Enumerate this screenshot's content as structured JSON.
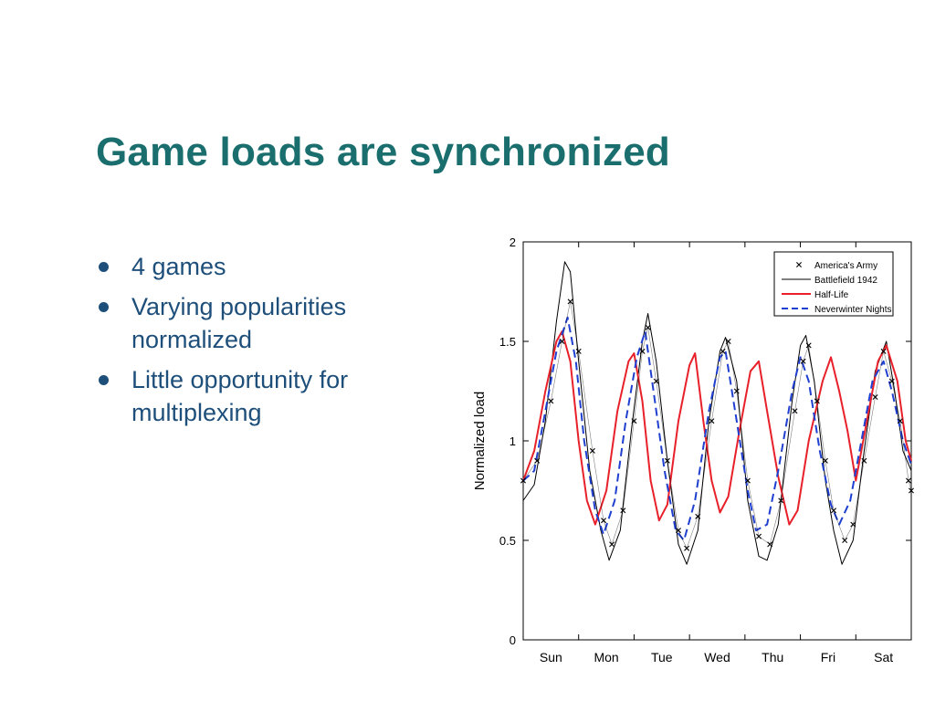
{
  "slide": {
    "title": "Game loads are synchronized",
    "bullets": [
      {
        "text": "4 games"
      },
      {
        "text": "Varying popularities normalized"
      },
      {
        "text": "Little opportunity for multiplexing"
      }
    ],
    "text_color": "#1e4f7a",
    "title_color": "#1a6e6e"
  },
  "chart_data": {
    "type": "line",
    "title": "",
    "xlabel": "",
    "ylabel": "Normalized load",
    "ylim": [
      0,
      2
    ],
    "xlim": [
      0,
      7
    ],
    "yticks": [
      "0",
      "0.5",
      "1",
      "1.5",
      "2"
    ],
    "categories": [
      "Sun",
      "Mon",
      "Tue",
      "Wed",
      "Thu",
      "Fri",
      "Sat"
    ],
    "grid": false,
    "legend_position": "top-right",
    "series": [
      {
        "name": "America's Army",
        "style": "markers-x",
        "color": "#000000",
        "points": [
          [
            0.0,
            0.8
          ],
          [
            0.25,
            0.9
          ],
          [
            0.5,
            1.2
          ],
          [
            0.7,
            1.5
          ],
          [
            0.85,
            1.7
          ],
          [
            1.0,
            1.45
          ],
          [
            1.25,
            0.95
          ],
          [
            1.45,
            0.6
          ],
          [
            1.6,
            0.48
          ],
          [
            1.8,
            0.65
          ],
          [
            2.0,
            1.1
          ],
          [
            2.15,
            1.45
          ],
          [
            2.25,
            1.57
          ],
          [
            2.4,
            1.3
          ],
          [
            2.6,
            0.9
          ],
          [
            2.8,
            0.55
          ],
          [
            2.95,
            0.46
          ],
          [
            3.15,
            0.62
          ],
          [
            3.4,
            1.1
          ],
          [
            3.6,
            1.45
          ],
          [
            3.7,
            1.5
          ],
          [
            3.85,
            1.25
          ],
          [
            4.05,
            0.8
          ],
          [
            4.25,
            0.52
          ],
          [
            4.45,
            0.48
          ],
          [
            4.65,
            0.7
          ],
          [
            4.9,
            1.15
          ],
          [
            5.05,
            1.4
          ],
          [
            5.15,
            1.48
          ],
          [
            5.3,
            1.2
          ],
          [
            5.45,
            0.9
          ],
          [
            5.6,
            0.65
          ],
          [
            5.8,
            0.5
          ],
          [
            5.95,
            0.58
          ],
          [
            6.15,
            0.9
          ],
          [
            6.35,
            1.22
          ],
          [
            6.5,
            1.45
          ],
          [
            6.65,
            1.3
          ],
          [
            6.8,
            1.1
          ],
          [
            6.95,
            0.8
          ],
          [
            7.0,
            0.75
          ]
        ]
      },
      {
        "name": "Battlefield 1942",
        "style": "solid-thin",
        "color": "#000000",
        "points": [
          [
            0.0,
            0.7
          ],
          [
            0.2,
            0.78
          ],
          [
            0.4,
            1.1
          ],
          [
            0.6,
            1.6
          ],
          [
            0.75,
            1.9
          ],
          [
            0.85,
            1.85
          ],
          [
            1.0,
            1.4
          ],
          [
            1.2,
            0.85
          ],
          [
            1.4,
            0.55
          ],
          [
            1.55,
            0.4
          ],
          [
            1.75,
            0.55
          ],
          [
            1.95,
            1.05
          ],
          [
            2.15,
            1.5
          ],
          [
            2.25,
            1.64
          ],
          [
            2.4,
            1.4
          ],
          [
            2.6,
            0.9
          ],
          [
            2.8,
            0.48
          ],
          [
            2.95,
            0.38
          ],
          [
            3.15,
            0.55
          ],
          [
            3.35,
            1.1
          ],
          [
            3.55,
            1.45
          ],
          [
            3.65,
            1.52
          ],
          [
            3.85,
            1.3
          ],
          [
            4.05,
            0.7
          ],
          [
            4.25,
            0.42
          ],
          [
            4.4,
            0.4
          ],
          [
            4.6,
            0.58
          ],
          [
            4.85,
            1.2
          ],
          [
            5.0,
            1.48
          ],
          [
            5.1,
            1.53
          ],
          [
            5.25,
            1.3
          ],
          [
            5.45,
            0.8
          ],
          [
            5.6,
            0.55
          ],
          [
            5.75,
            0.38
          ],
          [
            5.95,
            0.5
          ],
          [
            6.15,
            0.95
          ],
          [
            6.35,
            1.35
          ],
          [
            6.55,
            1.5
          ],
          [
            6.7,
            1.25
          ],
          [
            6.85,
            0.95
          ],
          [
            7.0,
            0.85
          ]
        ]
      },
      {
        "name": "Half-Life",
        "style": "solid-thick",
        "color": "#e8202a",
        "points": [
          [
            0.0,
            0.8
          ],
          [
            0.2,
            0.95
          ],
          [
            0.4,
            1.25
          ],
          [
            0.6,
            1.5
          ],
          [
            0.7,
            1.55
          ],
          [
            0.85,
            1.4
          ],
          [
            1.0,
            1.0
          ],
          [
            1.15,
            0.7
          ],
          [
            1.3,
            0.58
          ],
          [
            1.5,
            0.75
          ],
          [
            1.7,
            1.15
          ],
          [
            1.9,
            1.4
          ],
          [
            2.0,
            1.44
          ],
          [
            2.15,
            1.2
          ],
          [
            2.3,
            0.8
          ],
          [
            2.45,
            0.6
          ],
          [
            2.6,
            0.68
          ],
          [
            2.8,
            1.1
          ],
          [
            3.0,
            1.38
          ],
          [
            3.1,
            1.44
          ],
          [
            3.25,
            1.1
          ],
          [
            3.4,
            0.8
          ],
          [
            3.55,
            0.64
          ],
          [
            3.7,
            0.72
          ],
          [
            3.9,
            1.05
          ],
          [
            4.1,
            1.35
          ],
          [
            4.25,
            1.4
          ],
          [
            4.4,
            1.15
          ],
          [
            4.6,
            0.82
          ],
          [
            4.8,
            0.58
          ],
          [
            4.95,
            0.65
          ],
          [
            5.15,
            1.0
          ],
          [
            5.4,
            1.3
          ],
          [
            5.55,
            1.42
          ],
          [
            5.7,
            1.25
          ],
          [
            5.85,
            1.05
          ],
          [
            6.0,
            0.8
          ],
          [
            6.2,
            1.1
          ],
          [
            6.4,
            1.4
          ],
          [
            6.55,
            1.48
          ],
          [
            6.75,
            1.3
          ],
          [
            6.9,
            1.0
          ],
          [
            7.0,
            0.9
          ]
        ]
      },
      {
        "name": "Neverwinter Nights",
        "style": "dashed",
        "color": "#1f3fd0",
        "points": [
          [
            0.0,
            0.8
          ],
          [
            0.2,
            0.85
          ],
          [
            0.4,
            1.15
          ],
          [
            0.6,
            1.45
          ],
          [
            0.8,
            1.62
          ],
          [
            0.95,
            1.4
          ],
          [
            1.1,
            1.0
          ],
          [
            1.3,
            0.65
          ],
          [
            1.45,
            0.53
          ],
          [
            1.65,
            0.7
          ],
          [
            1.85,
            1.1
          ],
          [
            2.05,
            1.42
          ],
          [
            2.2,
            1.55
          ],
          [
            2.35,
            1.25
          ],
          [
            2.55,
            0.85
          ],
          [
            2.75,
            0.55
          ],
          [
            2.9,
            0.5
          ],
          [
            3.1,
            0.7
          ],
          [
            3.35,
            1.15
          ],
          [
            3.55,
            1.42
          ],
          [
            3.65,
            1.45
          ],
          [
            3.85,
            1.1
          ],
          [
            4.05,
            0.75
          ],
          [
            4.2,
            0.55
          ],
          [
            4.4,
            0.58
          ],
          [
            4.6,
            0.85
          ],
          [
            4.85,
            1.25
          ],
          [
            5.0,
            1.42
          ],
          [
            5.15,
            1.3
          ],
          [
            5.35,
            0.95
          ],
          [
            5.55,
            0.68
          ],
          [
            5.7,
            0.58
          ],
          [
            5.9,
            0.7
          ],
          [
            6.1,
            1.0
          ],
          [
            6.3,
            1.3
          ],
          [
            6.5,
            1.4
          ],
          [
            6.65,
            1.25
          ],
          [
            6.85,
            1.0
          ],
          [
            7.0,
            0.88
          ]
        ]
      }
    ]
  }
}
